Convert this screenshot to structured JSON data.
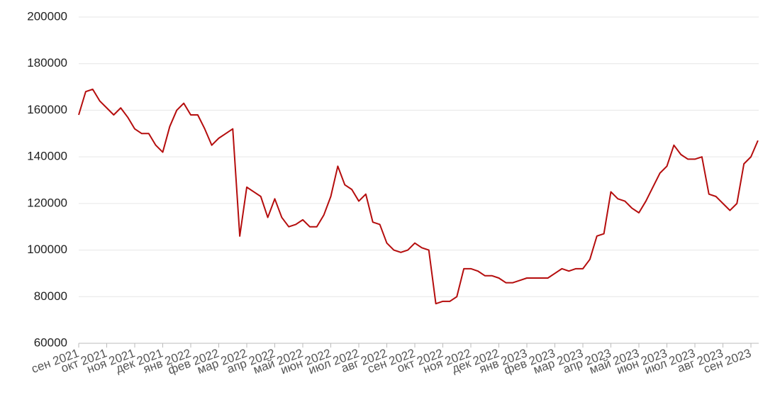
{
  "chart_data": {
    "type": "line",
    "categories": [
      "сен 2021",
      null,
      null,
      null,
      "окт 2021",
      null,
      null,
      null,
      "ноя 2021",
      null,
      null,
      null,
      "дек 2021",
      null,
      null,
      null,
      "янв 2022",
      null,
      null,
      null,
      "фев 2022",
      null,
      null,
      null,
      "мар 2022",
      null,
      null,
      null,
      "апр 2022",
      null,
      null,
      null,
      "май 2022",
      null,
      null,
      null,
      "июн 2022",
      null,
      null,
      null,
      "июл 2022",
      null,
      null,
      null,
      "авг 2022",
      null,
      null,
      null,
      "сен 2022",
      null,
      null,
      null,
      "окт 2022",
      null,
      null,
      null,
      "ноя 2022",
      null,
      null,
      null,
      "дек 2022",
      null,
      null,
      null,
      "янв 2023",
      null,
      null,
      null,
      "фев 2023",
      null,
      null,
      null,
      "мар 2023",
      null,
      null,
      null,
      "апр 2023",
      null,
      null,
      null,
      "май 2023",
      null,
      null,
      null,
      "июн 2023",
      null,
      null,
      null,
      "июл 2023",
      null,
      null,
      null,
      "авг 2023",
      null,
      null,
      null,
      "сен 2023",
      null
    ],
    "values": [
      158000,
      168000,
      169000,
      164000,
      161000,
      158000,
      161000,
      157000,
      152000,
      150000,
      150000,
      145000,
      142000,
      153000,
      160000,
      163000,
      158000,
      158000,
      152000,
      145000,
      148000,
      150000,
      152000,
      106000,
      127000,
      125000,
      123000,
      114000,
      122000,
      114000,
      110000,
      111000,
      113000,
      110000,
      110000,
      115000,
      123000,
      136000,
      128000,
      126000,
      121000,
      124000,
      112000,
      111000,
      103000,
      100000,
      99000,
      100000,
      103000,
      101000,
      100000,
      77000,
      78000,
      78000,
      80000,
      92000,
      92000,
      91000,
      89000,
      89000,
      88000,
      86000,
      86000,
      87000,
      88000,
      88000,
      88000,
      88000,
      90000,
      92000,
      91000,
      92000,
      92000,
      96000,
      106000,
      107000,
      125000,
      122000,
      121000,
      118000,
      116000,
      121000,
      127000,
      133000,
      136000,
      145000,
      141000,
      139000,
      139000,
      140000,
      124000,
      123000,
      120000,
      117000,
      120000,
      137000,
      140000,
      147000
    ],
    "color": "#b50d0d",
    "ylim": [
      60000,
      200000
    ],
    "yticks": [
      60000,
      80000,
      100000,
      120000,
      140000,
      160000,
      180000,
      200000
    ],
    "grid": true
  }
}
